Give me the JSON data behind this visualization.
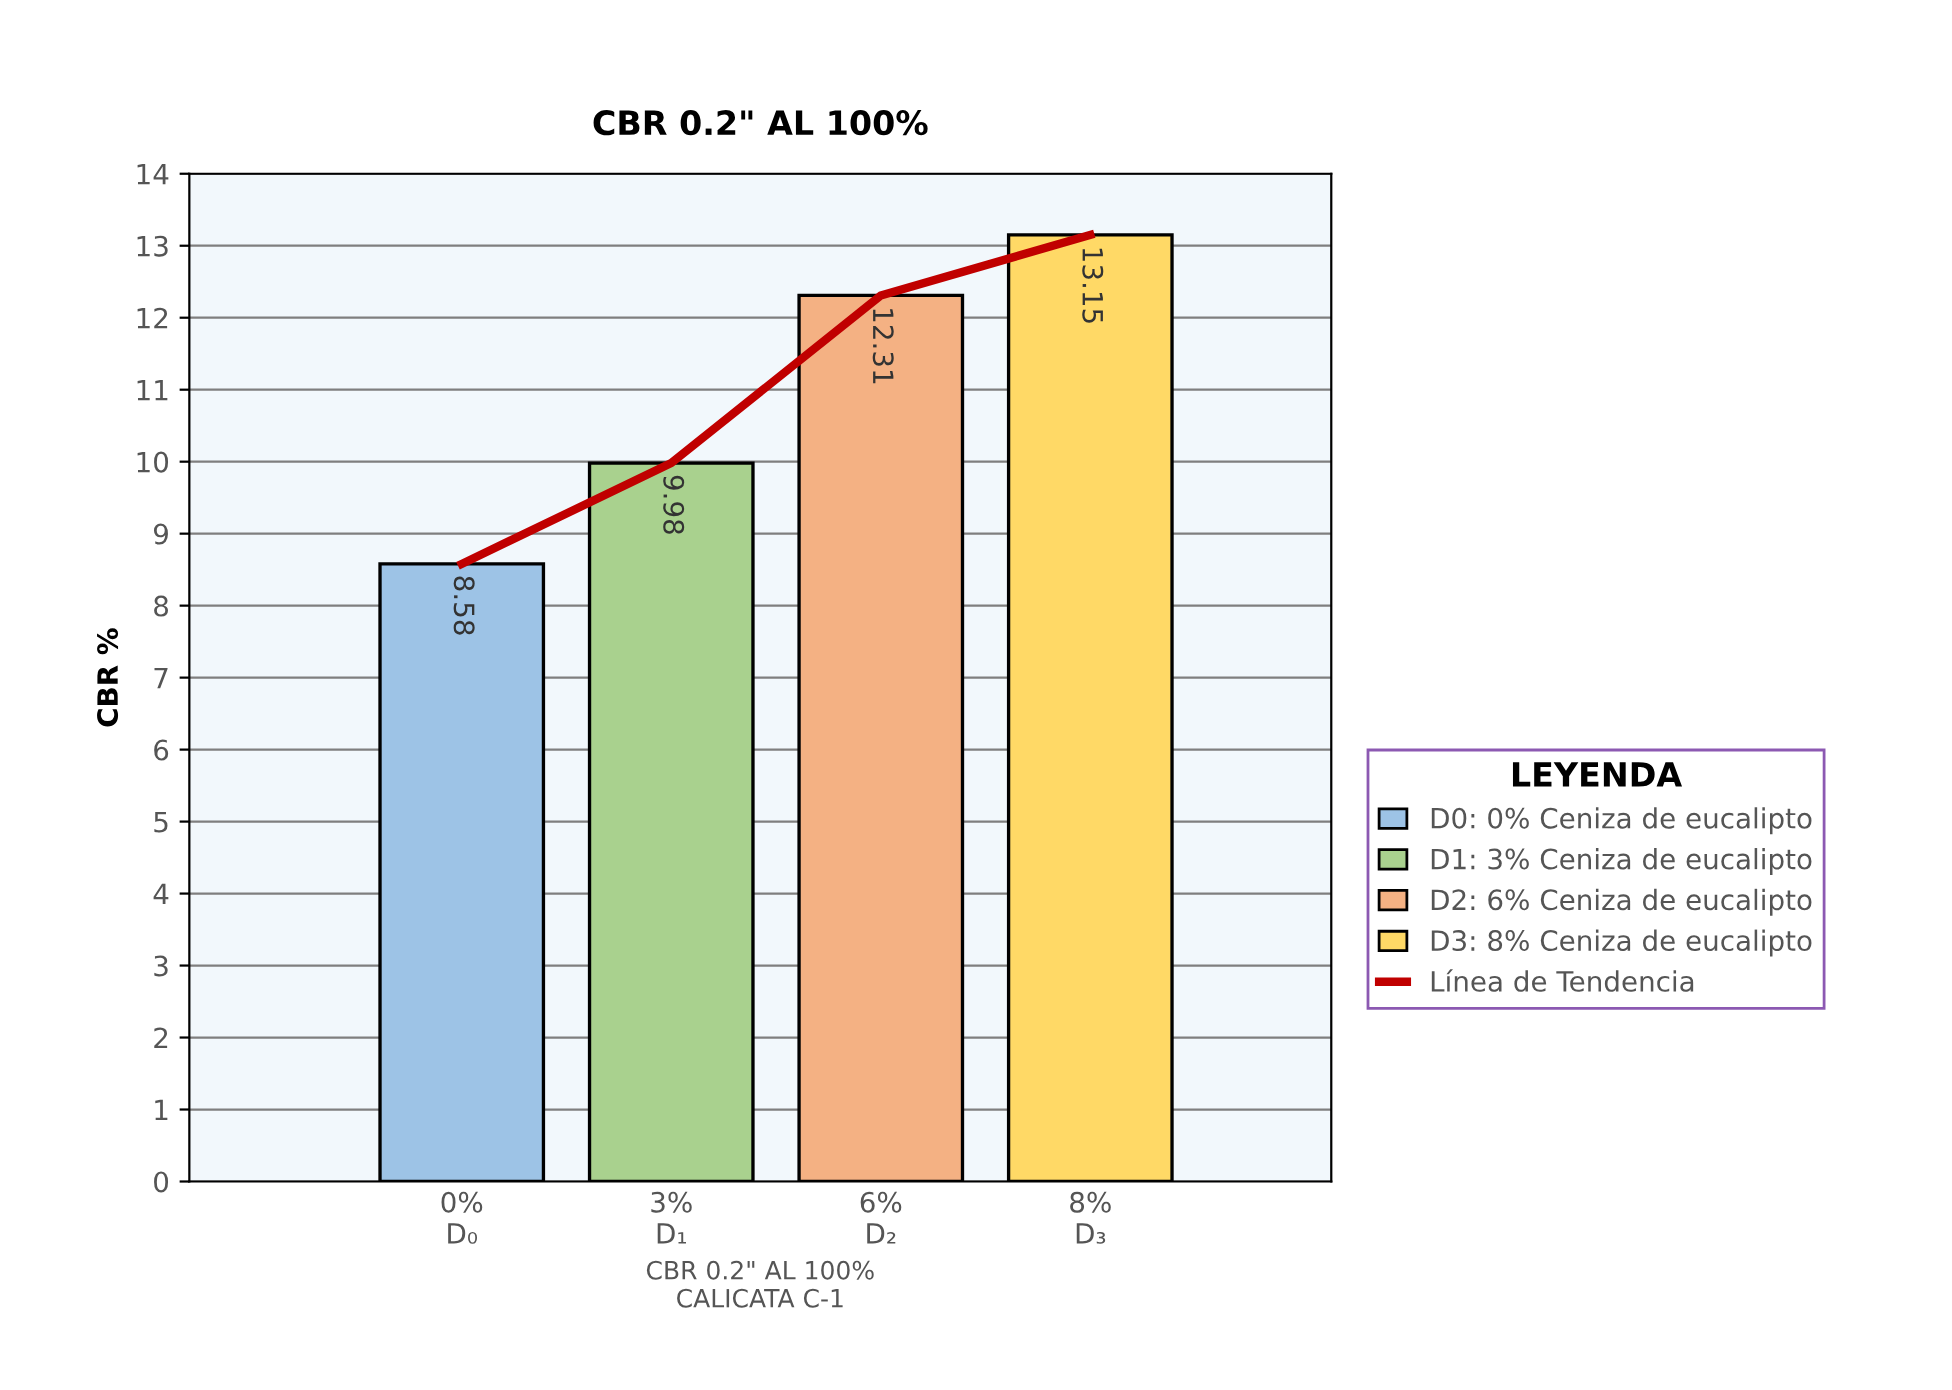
{
  "chart_data": {
    "type": "bar",
    "title": "CBR 0.2\" AL 100%",
    "xlabel": "CBR 0.2\" AL 100%\nCALICATA C-1",
    "ylabel": "CBR %",
    "categories": [
      "0%\nD₀",
      "3%\nD₁",
      "6%\nD₂",
      "8%\nD₃"
    ],
    "series": [
      {
        "name": "D0: 0% Ceniza de eucalipto",
        "color": "#9dc3e6",
        "values": [
          8.58,
          null,
          null,
          null
        ],
        "value_labels": [
          "8.58",
          null,
          null,
          null
        ]
      },
      {
        "name": "D1: 3% Ceniza de eucalipto",
        "color": "#a9d18e",
        "values": [
          null,
          9.98,
          null,
          null
        ],
        "value_labels": [
          null,
          "9.98",
          null,
          null
        ]
      },
      {
        "name": "D2: 6% Ceniza de eucalipto",
        "color": "#f4b183",
        "values": [
          null,
          null,
          12.31,
          null
        ],
        "value_labels": [
          null,
          null,
          "12.31",
          null
        ]
      },
      {
        "name": "D3: 8% Ceniza de eucalipto",
        "color": "#ffd966",
        "values": [
          null,
          null,
          null,
          13.15
        ],
        "value_labels": [
          null,
          null,
          null,
          "13.15"
        ]
      },
      {
        "name": "Línea de Tendencia",
        "type": "line",
        "color": "#c00000",
        "values": [
          8.58,
          9.98,
          12.31,
          13.15
        ]
      }
    ],
    "ylim": [
      0,
      14
    ],
    "yticks": [
      0,
      1,
      2,
      3,
      4,
      5,
      6,
      7,
      8,
      9,
      10,
      11,
      12,
      13,
      14
    ],
    "grid": "y",
    "legend": "right",
    "legend_title": "LEYENDA"
  }
}
